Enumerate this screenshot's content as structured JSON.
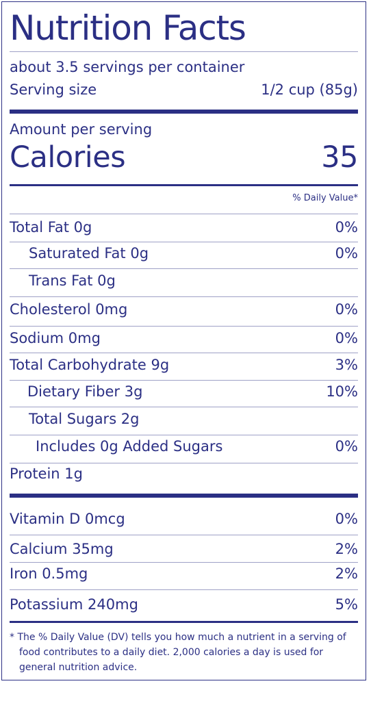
{
  "label": {
    "title": "Nutrition Facts",
    "servings_per_container": "about 3.5 servings per container",
    "serving_size_label": "Serving size",
    "serving_size_value": "1/2 cup (85g)",
    "amount_per_serving": "Amount per serving",
    "calories_label": "Calories",
    "calories_value": "35",
    "daily_value_header": "% Daily Value*",
    "nutrients": [
      {
        "name": "Total Fat 0g",
        "dv": "0%"
      },
      {
        "name": "Saturated Fat 0g",
        "dv": "0%"
      },
      {
        "name": "Trans Fat 0g",
        "dv": ""
      },
      {
        "name": "Cholesterol 0mg",
        "dv": "0%"
      },
      {
        "name": "Sodium 0mg",
        "dv": "0%"
      },
      {
        "name": "Total Carbohydrate 9g",
        "dv": "3%"
      },
      {
        "name": "Dietary Fiber 3g",
        "dv": "10%"
      },
      {
        "name": "Total Sugars 2g",
        "dv": ""
      },
      {
        "name": "Includes 0g Added Sugars",
        "dv": "0%"
      },
      {
        "name": "Protein 1g",
        "dv": ""
      }
    ],
    "vitamins": [
      {
        "name": "Vitamin D 0mcg",
        "dv": "0%"
      },
      {
        "name": "Calcium 35mg",
        "dv": "2%"
      },
      {
        "name": "Iron 0.5mg",
        "dv": "2%"
      },
      {
        "name": "Potassium 240mg",
        "dv": "5%"
      }
    ],
    "footnote": "* The % Daily Value (DV) tells you how much a nutrient in a serving of food contributes to a daily diet. 2,000 calories a day is used for general nutrition advice.",
    "colors": {
      "ink": "#2b2f84",
      "rule": "#9ea0c6"
    }
  }
}
